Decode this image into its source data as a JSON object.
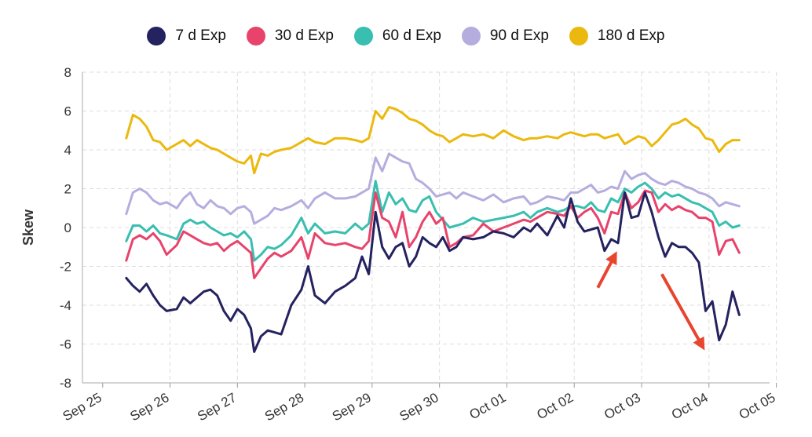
{
  "chart_data": {
    "type": "line",
    "title": "",
    "xlabel": "",
    "ylabel": "Skew",
    "ylim": [
      -8,
      8
    ],
    "yticks": [
      -8,
      -6,
      -4,
      -2,
      0,
      2,
      4,
      6,
      8
    ],
    "xlim": [
      -0.3,
      9.9
    ],
    "xtick_labels": [
      "Sep 25",
      "Sep 26",
      "Sep 27",
      "Sep 28",
      "Sep 29",
      "Sep 30",
      "Oct 01",
      "Oct 02",
      "Oct 03",
      "Oct 04",
      "Oct 05"
    ],
    "xticks": [
      0,
      1,
      2,
      3,
      4,
      5,
      6,
      7,
      8,
      9,
      10
    ],
    "grid": true,
    "legend_position": "top-center",
    "x": [
      0.35,
      0.45,
      0.55,
      0.65,
      0.75,
      0.85,
      0.95,
      1.1,
      1.2,
      1.3,
      1.4,
      1.5,
      1.6,
      1.7,
      1.8,
      1.9,
      2.0,
      2.1,
      2.2,
      2.25,
      2.35,
      2.45,
      2.55,
      2.65,
      2.8,
      2.95,
      3.05,
      3.15,
      3.3,
      3.45,
      3.6,
      3.75,
      3.85,
      3.95,
      4.05,
      4.15,
      4.25,
      4.35,
      4.45,
      4.55,
      4.65,
      4.75,
      4.85,
      4.95,
      5.05,
      5.15,
      5.25,
      5.35,
      5.5,
      5.65,
      5.8,
      5.95,
      6.1,
      6.25,
      6.35,
      6.45,
      6.6,
      6.75,
      6.85,
      6.95,
      7.05,
      7.15,
      7.25,
      7.35,
      7.45,
      7.55,
      7.65,
      7.75,
      7.85,
      7.95,
      8.05,
      8.15,
      8.25,
      8.35,
      8.45,
      8.55,
      8.65,
      8.75,
      8.85,
      8.95,
      9.05,
      9.15,
      9.25,
      9.35,
      9.45
    ],
    "series": [
      {
        "name": "7 d Exp",
        "color": "#24225f",
        "values": [
          -2.6,
          -3.0,
          -3.3,
          -2.9,
          -3.5,
          -4.0,
          -4.3,
          -4.2,
          -3.6,
          -3.9,
          -3.6,
          -3.3,
          -3.2,
          -3.5,
          -4.3,
          -4.8,
          -4.2,
          -4.5,
          -5.2,
          -6.4,
          -5.6,
          -5.3,
          -5.4,
          -5.5,
          -4.0,
          -3.2,
          -2.0,
          -3.5,
          -3.9,
          -3.3,
          -3.0,
          -2.6,
          -1.5,
          -2.4,
          0.8,
          -1.0,
          -1.6,
          -1.0,
          -0.8,
          -2.0,
          -1.5,
          -0.5,
          -0.8,
          -1.0,
          -0.5,
          -1.2,
          -1.0,
          -0.5,
          -0.6,
          -0.5,
          -0.2,
          -0.3,
          -0.5,
          0.0,
          -0.2,
          0.2,
          -0.4,
          0.6,
          0.0,
          1.5,
          0.3,
          -0.2,
          -0.1,
          0.0,
          -1.2,
          -0.6,
          -0.8,
          1.8,
          0.5,
          0.6,
          1.8,
          0.8,
          -0.5,
          -1.5,
          -0.8,
          -1.0,
          -1.0,
          -1.3,
          -1.8,
          -4.3,
          -3.8,
          -5.8,
          -5.0,
          -3.3,
          -4.5
        ]
      },
      {
        "name": "30 d Exp",
        "color": "#e8436b",
        "values": [
          -1.7,
          -0.6,
          -0.4,
          -0.6,
          -0.3,
          -0.7,
          -1.4,
          -0.9,
          -0.2,
          -0.4,
          -0.6,
          -0.8,
          -0.9,
          -0.8,
          -1.2,
          -0.9,
          -0.7,
          -1.0,
          -1.3,
          -2.6,
          -2.1,
          -1.6,
          -1.3,
          -1.5,
          -1.2,
          -0.5,
          -1.6,
          -0.3,
          -0.8,
          -0.9,
          -0.8,
          -1.0,
          -1.1,
          -0.7,
          1.8,
          0.5,
          0.3,
          -0.5,
          0.8,
          -1.0,
          -0.5,
          0.3,
          0.8,
          0.2,
          0.5,
          -1.0,
          -0.8,
          -0.5,
          -0.4,
          0.2,
          -0.2,
          0.0,
          0.2,
          0.4,
          0.3,
          0.5,
          0.8,
          0.7,
          0.6,
          1.1,
          0.5,
          0.8,
          1.0,
          0.5,
          -0.3,
          0.8,
          0.7,
          1.8,
          1.0,
          1.3,
          1.9,
          1.8,
          0.8,
          1.2,
          0.9,
          1.1,
          0.9,
          0.8,
          0.5,
          0.5,
          0.3,
          -1.4,
          -0.7,
          -0.6,
          -1.3
        ]
      },
      {
        "name": "60 d Exp",
        "color": "#38bfb0",
        "values": [
          -0.7,
          0.1,
          0.1,
          -0.2,
          0.1,
          -0.3,
          -0.4,
          -0.6,
          0.2,
          0.4,
          0.2,
          0.3,
          0.0,
          -0.2,
          -0.4,
          -0.3,
          -0.5,
          -0.2,
          -0.6,
          -1.7,
          -1.4,
          -1.0,
          -1.1,
          -0.9,
          -0.4,
          0.5,
          -0.3,
          0.2,
          -0.3,
          -0.2,
          -0.3,
          0.2,
          -0.1,
          0.2,
          2.4,
          0.8,
          1.8,
          1.2,
          1.5,
          0.9,
          0.8,
          1.4,
          1.6,
          0.8,
          0.4,
          0.0,
          0.1,
          0.2,
          0.5,
          0.3,
          0.4,
          0.5,
          0.6,
          0.8,
          0.5,
          0.8,
          1.0,
          0.8,
          0.9,
          1.1,
          1.1,
          1.0,
          1.3,
          0.9,
          0.8,
          1.5,
          1.3,
          2.0,
          1.8,
          2.1,
          2.3,
          2.0,
          1.5,
          1.8,
          1.6,
          1.7,
          1.5,
          1.3,
          1.2,
          1.0,
          0.8,
          0.1,
          0.3,
          0.0,
          0.1
        ]
      },
      {
        "name": "90 d Exp",
        "color": "#b6addf",
        "values": [
          0.7,
          1.8,
          2.0,
          1.8,
          1.4,
          1.2,
          1.3,
          1.0,
          1.5,
          1.8,
          1.2,
          1.0,
          1.4,
          1.1,
          1.0,
          0.7,
          1.0,
          1.1,
          0.8,
          0.2,
          0.4,
          0.6,
          1.0,
          0.9,
          1.1,
          1.4,
          1.0,
          1.5,
          1.8,
          1.5,
          1.5,
          1.6,
          1.8,
          2.0,
          3.6,
          2.9,
          3.8,
          3.6,
          3.4,
          3.3,
          2.5,
          2.3,
          2.0,
          1.6,
          1.7,
          1.8,
          1.5,
          1.8,
          1.6,
          1.4,
          1.7,
          1.3,
          1.5,
          1.6,
          1.2,
          1.3,
          1.6,
          1.5,
          1.4,
          1.8,
          1.8,
          2.0,
          2.2,
          1.8,
          1.9,
          2.1,
          2.0,
          2.9,
          2.5,
          2.7,
          2.8,
          2.5,
          2.3,
          2.2,
          2.4,
          2.3,
          2.1,
          2.0,
          1.8,
          1.7,
          1.5,
          1.1,
          1.3,
          1.2,
          1.1
        ]
      },
      {
        "name": "180 d Exp",
        "color": "#ebb90e",
        "values": [
          4.6,
          5.8,
          5.6,
          5.2,
          4.5,
          4.4,
          4.0,
          4.3,
          4.5,
          4.2,
          4.5,
          4.3,
          4.1,
          4.0,
          3.8,
          3.6,
          3.4,
          3.3,
          3.7,
          2.8,
          3.8,
          3.7,
          3.9,
          4.0,
          4.1,
          4.4,
          4.6,
          4.4,
          4.3,
          4.6,
          4.6,
          4.5,
          4.4,
          4.6,
          6.0,
          5.6,
          6.2,
          6.1,
          5.9,
          5.6,
          5.5,
          5.3,
          5.0,
          4.8,
          4.7,
          4.4,
          4.6,
          4.8,
          4.7,
          4.8,
          4.6,
          5.0,
          4.7,
          4.5,
          4.6,
          4.6,
          4.7,
          4.6,
          4.8,
          4.9,
          4.8,
          4.7,
          4.8,
          4.8,
          4.6,
          4.7,
          4.8,
          4.3,
          4.5,
          4.7,
          4.6,
          4.2,
          4.5,
          4.9,
          5.3,
          5.4,
          5.6,
          5.3,
          5.1,
          4.6,
          4.5,
          3.9,
          4.3,
          4.5,
          4.5
        ]
      }
    ],
    "annotations": [
      {
        "type": "arrow",
        "color": "#e8442e",
        "from": [
          7.35,
          -3.1
        ],
        "to": [
          7.6,
          -1.45
        ]
      },
      {
        "type": "arrow",
        "color": "#e8442e",
        "from": [
          8.3,
          -2.4
        ],
        "to": [
          8.9,
          -6.1
        ]
      }
    ]
  }
}
